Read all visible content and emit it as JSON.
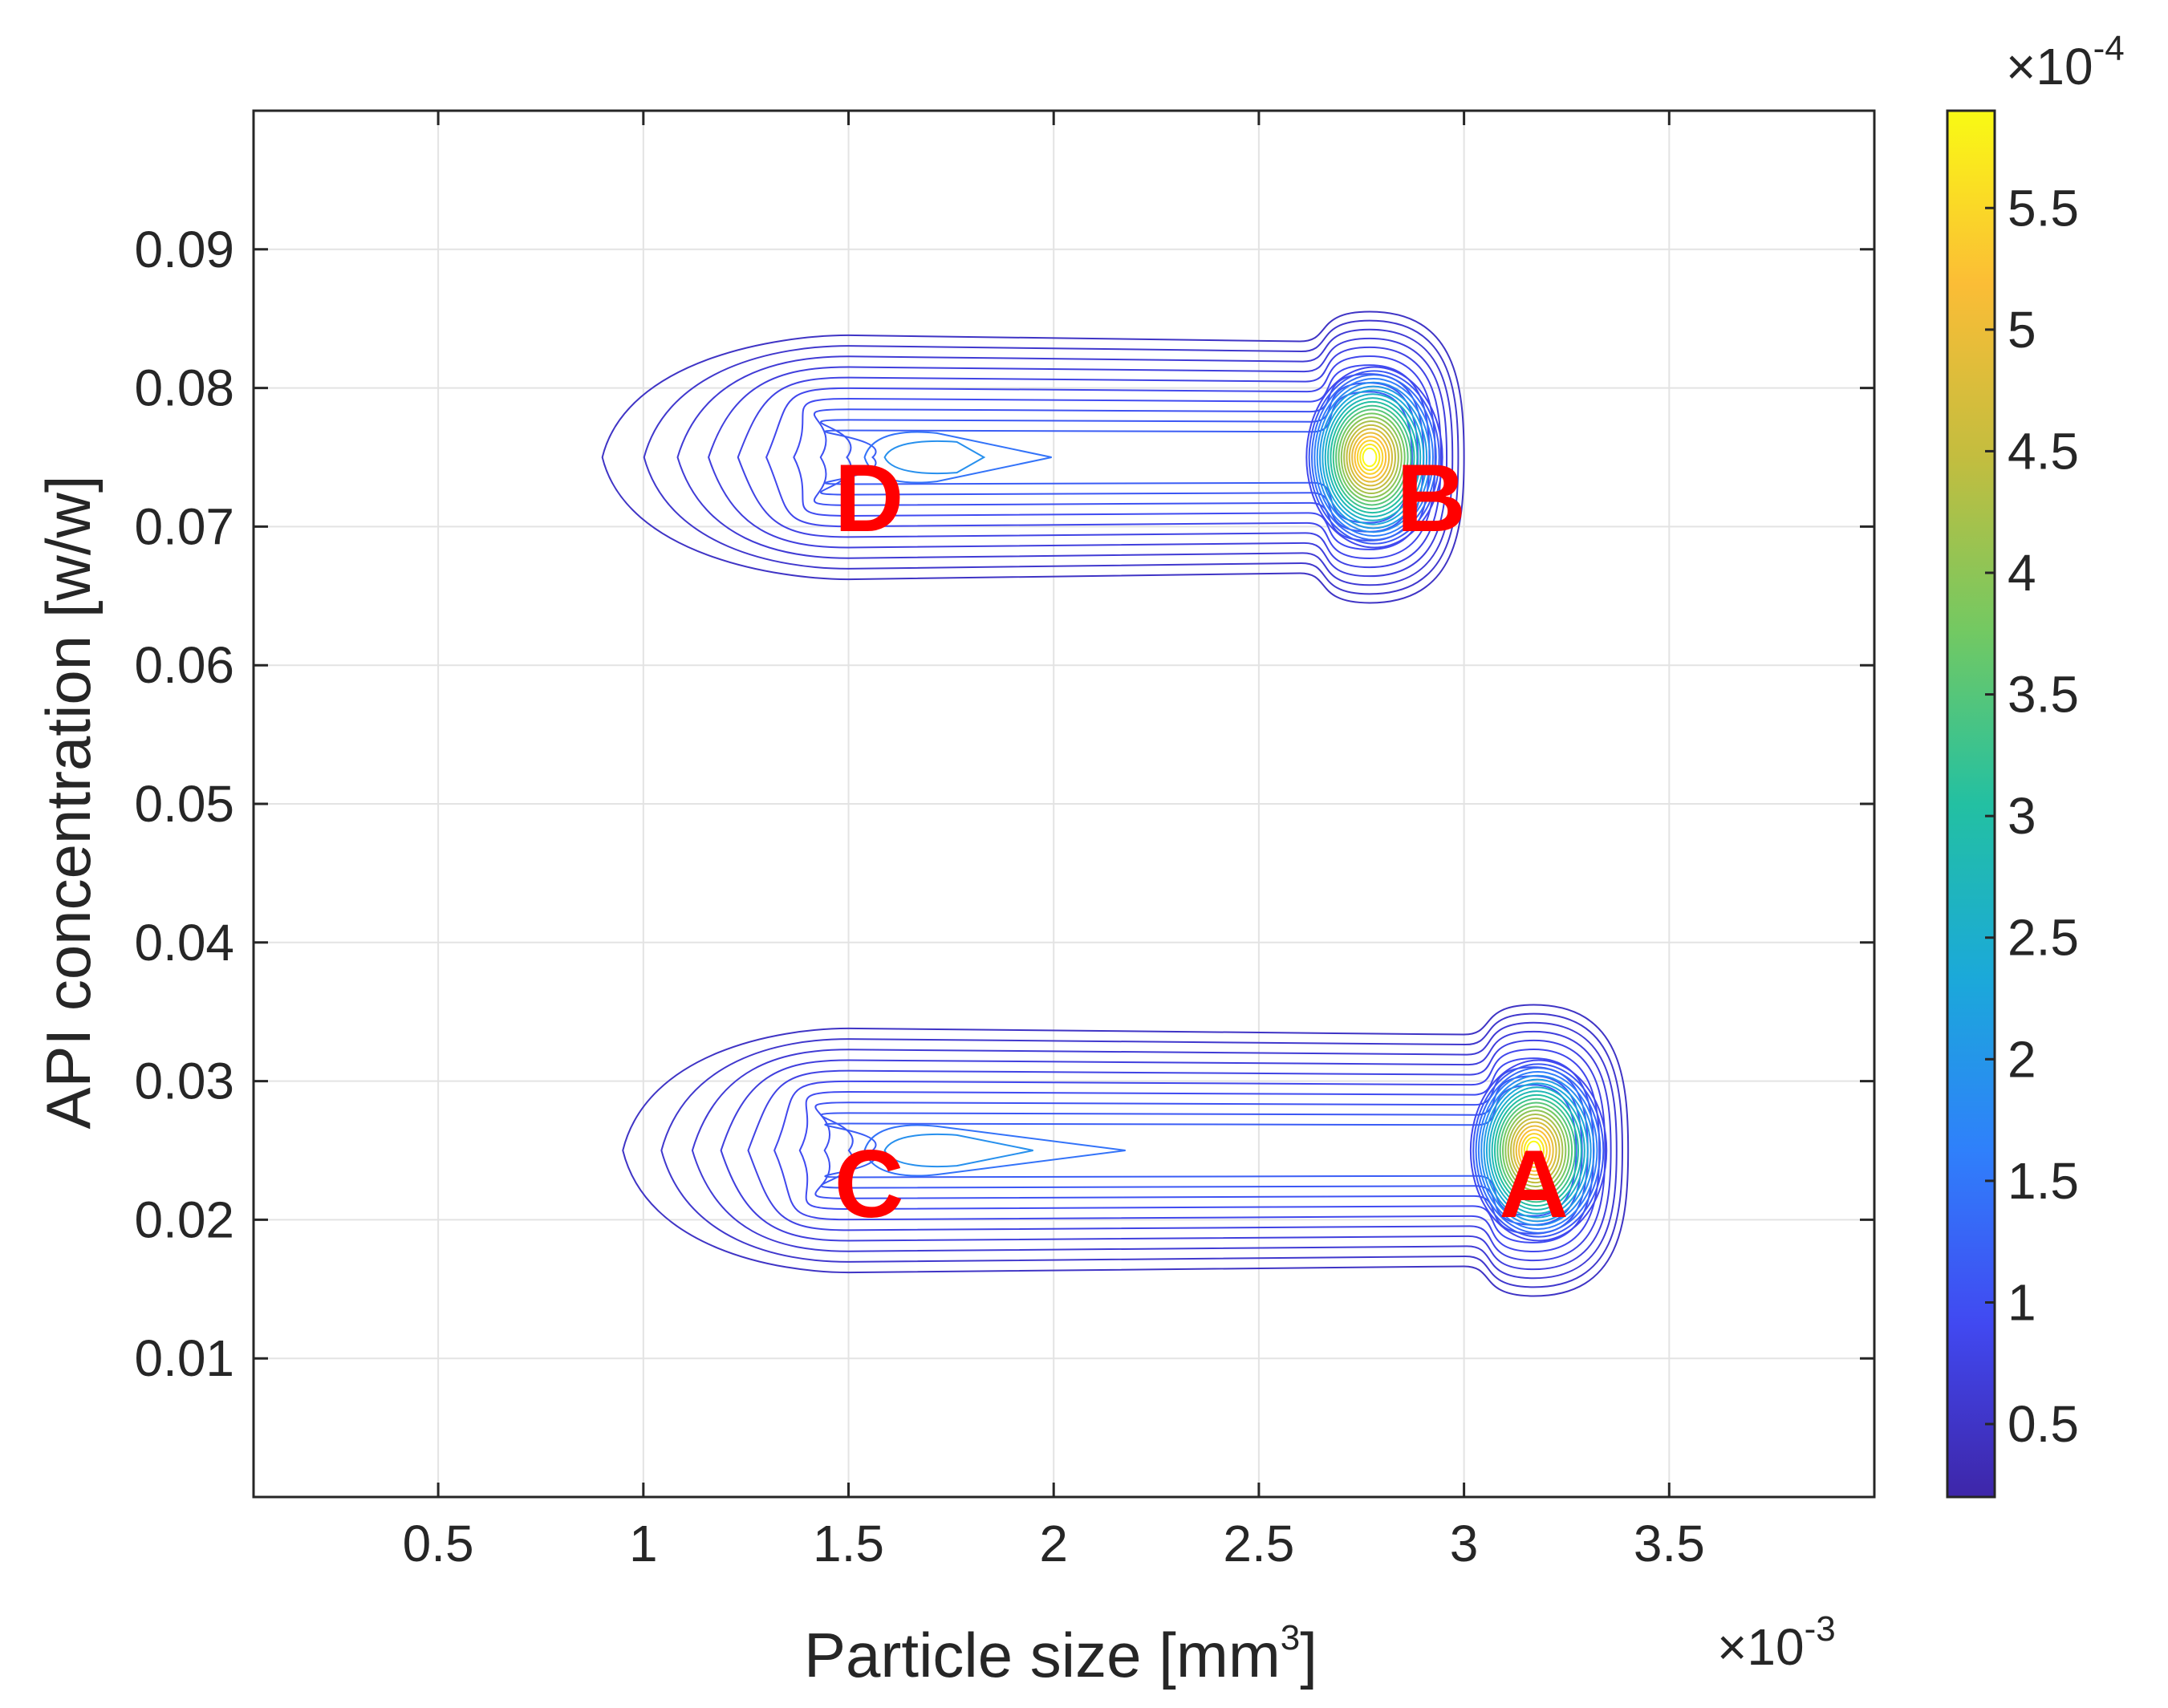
{
  "chart_data": {
    "type": "contour",
    "xlabel": "Particle size [mm",
    "xlabel_sup": "3",
    "xlabel_end": "]",
    "ylabel": "API concentration [w/w]",
    "x_exponent_prefix": "×10",
    "x_exponent": "-3",
    "c_exponent_prefix": "×10",
    "c_exponent": "-4",
    "xlim": [
      0.05,
      4.0
    ],
    "ylim": [
      0.0,
      0.1
    ],
    "x_ticks": [
      0.5,
      1,
      1.5,
      2,
      2.5,
      3,
      3.5
    ],
    "x_tick_labels": [
      "0.5",
      "1",
      "1.5",
      "2",
      "2.5",
      "3",
      "3.5"
    ],
    "y_ticks": [
      0.01,
      0.02,
      0.03,
      0.04,
      0.05,
      0.06,
      0.07,
      0.08,
      0.09
    ],
    "y_tick_labels": [
      "0.01",
      "0.02",
      "0.03",
      "0.04",
      "0.05",
      "0.06",
      "0.07",
      "0.08",
      "0.09"
    ],
    "colorbar": {
      "clim": [
        0.2,
        5.9
      ],
      "ticks": [
        0.5,
        1,
        1.5,
        2,
        2.5,
        3,
        3.5,
        4,
        4.5,
        5,
        5.5
      ],
      "tick_labels": [
        "0.5",
        "1",
        "1.5",
        "2",
        "2.5",
        "3",
        "3.5",
        "4",
        "4.5",
        "5",
        "5.5"
      ],
      "colormap": [
        "#3e26a8",
        "#4149f1",
        "#2f80fb",
        "#1ba9d9",
        "#23c0a2",
        "#73c962",
        "#c3bd3f",
        "#fbbd36",
        "#f9fa14"
      ]
    },
    "grid": true,
    "clusters": [
      {
        "label": "D",
        "tail_tip_x": 0.9,
        "tail_start_x": 1.5,
        "tail_end_x": 2.6,
        "peak_x": 2.77,
        "center_y": 0.075,
        "head_right_x": 3.0
      },
      {
        "label": "B",
        "peak_x": 2.77,
        "center_y": 0.075
      },
      {
        "label": "C",
        "tail_tip_x": 0.95,
        "tail_start_x": 1.5,
        "tail_end_x": 3.0,
        "peak_x": 3.17,
        "center_y": 0.025,
        "head_right_x": 3.4
      },
      {
        "label": "A",
        "peak_x": 3.17,
        "center_y": 0.025
      }
    ],
    "peak_labels": [
      {
        "text": "D",
        "x": 1.55,
        "y": 0.072
      },
      {
        "text": "B",
        "x": 2.92,
        "y": 0.072
      },
      {
        "text": "C",
        "x": 1.55,
        "y": 0.0225
      },
      {
        "text": "A",
        "x": 3.17,
        "y": 0.0225
      }
    ]
  }
}
